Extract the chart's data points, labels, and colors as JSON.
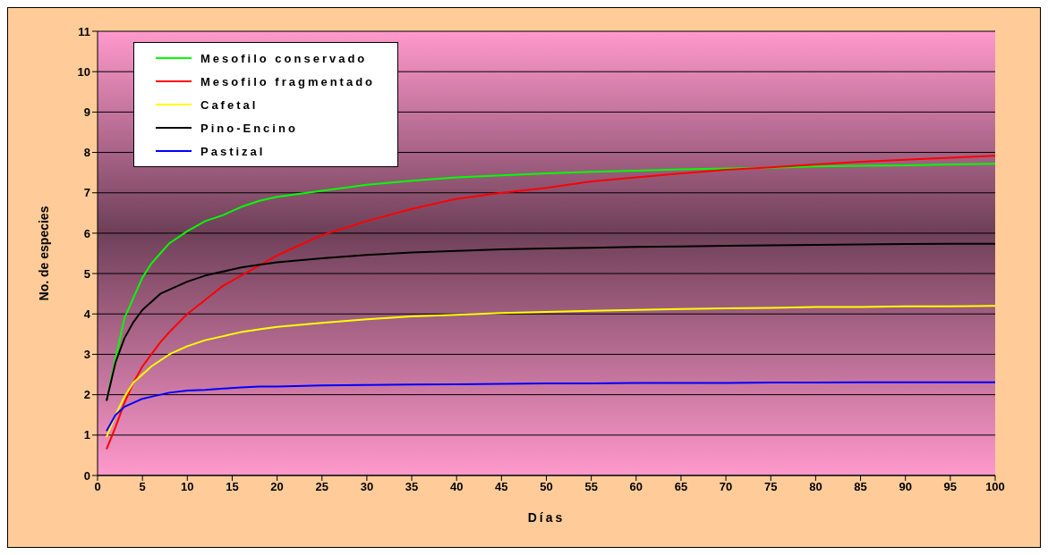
{
  "chart_data": {
    "type": "line",
    "xlabel": "Días",
    "ylabel": "No. de especies",
    "x": [
      1,
      2,
      3,
      4,
      5,
      6,
      7,
      8,
      10,
      12,
      14,
      16,
      18,
      20,
      25,
      30,
      35,
      40,
      45,
      50,
      55,
      60,
      65,
      70,
      75,
      80,
      85,
      90,
      95,
      100
    ],
    "series": [
      {
        "name": "Mesofilo conservado",
        "color": "#00ff00",
        "values": [
          1.85,
          2.9,
          3.9,
          4.4,
          4.9,
          5.25,
          5.5,
          5.75,
          6.05,
          6.3,
          6.45,
          6.65,
          6.8,
          6.9,
          7.05,
          7.2,
          7.3,
          7.38,
          7.43,
          7.48,
          7.52,
          7.55,
          7.58,
          7.6,
          7.62,
          7.65,
          7.67,
          7.68,
          7.7,
          7.72
        ]
      },
      {
        "name": "Mesofilo fragmentado",
        "color": "#ff0000",
        "values": [
          0.65,
          1.2,
          1.8,
          2.3,
          2.7,
          3.0,
          3.3,
          3.55,
          4.0,
          4.35,
          4.7,
          4.95,
          5.2,
          5.45,
          5.95,
          6.3,
          6.6,
          6.85,
          7.0,
          7.12,
          7.28,
          7.38,
          7.48,
          7.57,
          7.63,
          7.7,
          7.77,
          7.82,
          7.87,
          7.92
        ]
      },
      {
        "name": "Cafetal",
        "color": "#ffff00",
        "values": [
          0.95,
          1.5,
          1.95,
          2.3,
          2.5,
          2.7,
          2.85,
          3.0,
          3.2,
          3.35,
          3.45,
          3.55,
          3.62,
          3.68,
          3.78,
          3.87,
          3.94,
          3.98,
          4.02,
          4.05,
          4.08,
          4.1,
          4.12,
          4.14,
          4.15,
          4.17,
          4.17,
          4.19,
          4.19,
          4.2
        ]
      },
      {
        "name": "Pino-Encino",
        "color": "#000000",
        "values": [
          1.85,
          2.8,
          3.4,
          3.8,
          4.1,
          4.3,
          4.5,
          4.6,
          4.8,
          4.95,
          5.05,
          5.15,
          5.22,
          5.28,
          5.38,
          5.46,
          5.52,
          5.56,
          5.6,
          5.62,
          5.64,
          5.66,
          5.67,
          5.69,
          5.7,
          5.71,
          5.72,
          5.73,
          5.74,
          5.74
        ]
      },
      {
        "name": "Pastizal",
        "color": "#0000ff",
        "values": [
          1.1,
          1.5,
          1.7,
          1.8,
          1.9,
          1.95,
          2.0,
          2.05,
          2.1,
          2.12,
          2.15,
          2.18,
          2.2,
          2.2,
          2.23,
          2.24,
          2.25,
          2.26,
          2.27,
          2.28,
          2.28,
          2.29,
          2.29,
          2.29,
          2.3,
          2.3,
          2.31,
          2.31,
          2.31,
          2.31
        ]
      }
    ],
    "xlim": [
      0,
      100
    ],
    "xticks": [
      0,
      5,
      10,
      15,
      20,
      25,
      30,
      35,
      40,
      45,
      50,
      55,
      60,
      65,
      70,
      75,
      80,
      85,
      90,
      95,
      100
    ],
    "ylim": [
      0,
      11
    ],
    "yticks": [
      0,
      1,
      2,
      3,
      4,
      5,
      6,
      7,
      8,
      9,
      10,
      11
    ],
    "grid": "y",
    "legend": "top left",
    "marker": "none",
    "line_style": "solid"
  }
}
